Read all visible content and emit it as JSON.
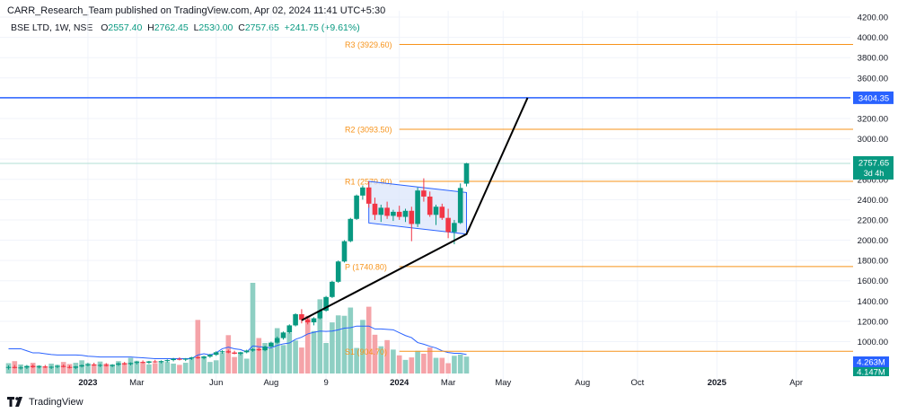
{
  "header": {
    "published": "CARR_Research_Team published on TradingView.com, Apr 02, 2024 11:41 UTC+5:30"
  },
  "ohlc": {
    "symbol": "BSE LTD, 1W, NSE",
    "o_label": "O",
    "o": "2557.40",
    "h_label": "H",
    "h": "2762.45",
    "l_label": "L",
    "l": "2530.00",
    "c_label": "C",
    "c": "2757.65",
    "change": "+241.75 (+9.61%)"
  },
  "footer": {
    "brand": "TradingView"
  },
  "colors": {
    "up": "#089981",
    "down": "#f23645",
    "vol_up": "#8ecfc3",
    "vol_down": "#f5a3a8",
    "pivot": "#f7931a",
    "hline": "#2962ff",
    "channel_fill": "#dbe5fb",
    "grid": "#f0f3fa"
  },
  "chart_data": {
    "type": "candlestick",
    "y_axis": {
      "ylim": [
        800,
        4200
      ],
      "ticks": [
        1000,
        1200,
        1400,
        1600,
        1800,
        2000,
        2200,
        2400,
        2600,
        2800,
        3000,
        3200,
        3400,
        3600,
        3800,
        4000,
        4200
      ],
      "tick_labels": [
        "1000.00",
        "1200.00",
        "1400.00",
        "1600.00",
        "1800.00",
        "2000.00",
        "2200.00",
        "2400.00",
        "2600.00",
        "2800.00",
        "3000.00",
        "3200.00",
        "3400.00",
        "3600.00",
        "3800.00",
        "4000.00",
        "4200.00"
      ]
    },
    "x_axis": {
      "ticks": [
        {
          "i": 13,
          "label": "2023",
          "bold": true
        },
        {
          "i": 21,
          "label": "Mar"
        },
        {
          "i": 34,
          "label": "Jun"
        },
        {
          "i": 43,
          "label": "Aug"
        },
        {
          "i": 52,
          "label": "9"
        },
        {
          "i": 64,
          "label": "2024",
          "bold": true
        },
        {
          "i": 72,
          "label": "Mar"
        },
        {
          "i": 81,
          "label": "May"
        },
        {
          "i": 94,
          "label": "Aug"
        },
        {
          "i": 103,
          "label": "Oct"
        },
        {
          "i": 116,
          "label": "2025",
          "bold": true
        },
        {
          "i": 129,
          "label": "Apr"
        }
      ]
    },
    "price_labels": {
      "last_price": "2757.65",
      "countdown": "3d 4h",
      "level": "3404.35",
      "volume_1": "4.263M",
      "volume_2": "4.147M"
    },
    "pivots": [
      {
        "label": "R3 (3929.60)",
        "value": 3929.6
      },
      {
        "label": "R2 (3093.50)",
        "value": 3093.5
      },
      {
        "label": "R1 (2579.90)",
        "value": 2579.9
      },
      {
        "label": "P (1740.80)",
        "value": 1740.8
      },
      {
        "label": "S1 (904.70)",
        "value": 904.7
      }
    ],
    "horizontal_level": 3404.35,
    "current_price": 2757.65,
    "channel": {
      "upper": [
        [
          59,
          2580
        ],
        [
          75,
          2470
        ]
      ],
      "lower": [
        [
          59,
          2170
        ],
        [
          75,
          2060
        ]
      ]
    },
    "trendline": [
      [
        48,
        1210
      ],
      [
        75,
        2060
      ],
      [
        85,
        3404
      ]
    ],
    "candles": [
      [
        745,
        765,
        725,
        750
      ],
      [
        750,
        770,
        735,
        740
      ],
      [
        740,
        760,
        725,
        745
      ],
      [
        745,
        770,
        730,
        760
      ],
      [
        760,
        775,
        740,
        748
      ],
      [
        748,
        765,
        735,
        755
      ],
      [
        755,
        770,
        740,
        745
      ],
      [
        745,
        760,
        730,
        752
      ],
      [
        752,
        770,
        738,
        760
      ],
      [
        760,
        775,
        745,
        750
      ],
      [
        750,
        765,
        735,
        742
      ],
      [
        742,
        760,
        728,
        755
      ],
      [
        755,
        775,
        745,
        768
      ],
      [
        768,
        790,
        755,
        775
      ],
      [
        775,
        792,
        760,
        765
      ],
      [
        765,
        780,
        750,
        770
      ],
      [
        770,
        788,
        755,
        760
      ],
      [
        760,
        778,
        748,
        772
      ],
      [
        772,
        795,
        760,
        785
      ],
      [
        785,
        800,
        770,
        778
      ],
      [
        778,
        795,
        765,
        790
      ],
      [
        790,
        808,
        775,
        800
      ],
      [
        800,
        815,
        785,
        792
      ],
      [
        792,
        810,
        780,
        805
      ],
      [
        805,
        820,
        790,
        798
      ],
      [
        798,
        815,
        785,
        808
      ],
      [
        808,
        825,
        795,
        818
      ],
      [
        818,
        840,
        805,
        830
      ],
      [
        830,
        845,
        815,
        822
      ],
      [
        822,
        838,
        808,
        832
      ],
      [
        832,
        850,
        820,
        845
      ],
      [
        845,
        860,
        830,
        838
      ],
      [
        838,
        860,
        825,
        852
      ],
      [
        852,
        880,
        840,
        870
      ],
      [
        870,
        905,
        860,
        895
      ],
      [
        895,
        915,
        880,
        905
      ],
      [
        905,
        920,
        885,
        893
      ],
      [
        893,
        910,
        875,
        880
      ],
      [
        880,
        900,
        865,
        895
      ],
      [
        895,
        920,
        885,
        912
      ],
      [
        912,
        935,
        900,
        925
      ],
      [
        925,
        940,
        908,
        915
      ],
      [
        915,
        960,
        905,
        950
      ],
      [
        950,
        1000,
        940,
        990
      ],
      [
        990,
        1050,
        980,
        1035
      ],
      [
        1035,
        1100,
        1020,
        1090
      ],
      [
        1090,
        1170,
        1080,
        1160
      ],
      [
        1160,
        1280,
        1150,
        1270
      ],
      [
        1270,
        1320,
        1180,
        1215
      ],
      [
        1215,
        1250,
        1170,
        1190
      ],
      [
        1190,
        1240,
        1160,
        1230
      ],
      [
        1230,
        1320,
        1220,
        1305
      ],
      [
        1305,
        1450,
        1295,
        1440
      ],
      [
        1440,
        1600,
        1430,
        1590
      ],
      [
        1590,
        1800,
        1580,
        1790
      ],
      [
        1790,
        2000,
        1780,
        1990
      ],
      [
        1990,
        2220,
        1980,
        2210
      ],
      [
        2210,
        2450,
        2200,
        2440
      ],
      [
        2440,
        2540,
        2400,
        2520
      ],
      [
        2520,
        2580,
        2320,
        2360
      ],
      [
        2360,
        2420,
        2200,
        2250
      ],
      [
        2250,
        2350,
        2180,
        2320
      ],
      [
        2320,
        2380,
        2210,
        2240
      ],
      [
        2240,
        2300,
        2190,
        2280
      ],
      [
        2280,
        2340,
        2200,
        2230
      ],
      [
        2230,
        2310,
        2180,
        2290
      ],
      [
        2290,
        2330,
        1990,
        2160
      ],
      [
        2160,
        2520,
        2130,
        2490
      ],
      [
        2490,
        2610,
        2380,
        2430
      ],
      [
        2430,
        2480,
        2230,
        2250
      ],
      [
        2250,
        2350,
        2150,
        2330
      ],
      [
        2330,
        2360,
        2200,
        2220
      ],
      [
        2220,
        2310,
        2020,
        2080
      ],
      [
        2080,
        2200,
        1960,
        2170
      ],
      [
        2170,
        2560,
        2160,
        2515
      ],
      [
        2557.4,
        2762.45,
        2530,
        2757.65
      ]
    ],
    "volume": {
      "ylim": [
        0,
        40
      ],
      "values": [
        2.5,
        3,
        2.2,
        1.8,
        2.6,
        2,
        1.7,
        2.4,
        2.1,
        2.8,
        2.3,
        2.6,
        3.2,
        2.5,
        2.2,
        2.9,
        2.4,
        2.1,
        3,
        2.6,
        3.8,
        3.1,
        2.7,
        2.2,
        2.5,
        3,
        2.8,
        2.4,
        2.1,
        2.6,
        3.5,
        13,
        4.2,
        2.8,
        3.2,
        5,
        9.3,
        4,
        5.1,
        3.6,
        22,
        8.6,
        7.4,
        6.2,
        11,
        6.9,
        9.8,
        8,
        6.3,
        14,
        10.3,
        18,
        7.4,
        12.4,
        14.1,
        14,
        16,
        6.2,
        13,
        16.2,
        9.4,
        6.6,
        8.1,
        5.8,
        4.4,
        3.3,
        3.9,
        5.5,
        4.8,
        6.3,
        3.8,
        3.8,
        2.5,
        4.3,
        4.6,
        4.1
      ],
      "ma": [
        6,
        6,
        6,
        5.5,
        5,
        5,
        4.8,
        4.6,
        4.5,
        4.5,
        4.5,
        4.5,
        4.4,
        4.2,
        4.1,
        4,
        4,
        4,
        4,
        4,
        4,
        3.9,
        3.8,
        3.7,
        3.6,
        3.6,
        3.6,
        3.6,
        3.6,
        3.6,
        3.6,
        4.5,
        4.8,
        4.5,
        5,
        6,
        6.4,
        6,
        5.8,
        5.2,
        6.7,
        6.5,
        6.4,
        6.2,
        6.8,
        7.2,
        7.4,
        8.3,
        8.8,
        9.6,
        10,
        10.3,
        10.2,
        10.3,
        10.6,
        11,
        11.1,
        11.5,
        11.5,
        11.5,
        10.8,
        10.8,
        10.7,
        10.6,
        9.9,
        9.2,
        8.7,
        7.5,
        7.1,
        6.6,
        6.2,
        5.5,
        5.1,
        4.9,
        4.9,
        4.6
      ]
    }
  }
}
